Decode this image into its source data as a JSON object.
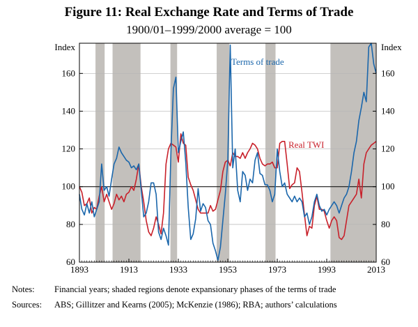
{
  "chart_data": {
    "type": "line",
    "title": "Figure 11: Real Exchange Rate and Terms of Trade",
    "subtitle": "1900/01–1999/2000 average = 100",
    "ylabel_left": "Index",
    "ylabel_right": "Index",
    "xlim": [
      1893,
      2013
    ],
    "ylim": [
      60,
      176
    ],
    "x_ticks": [
      1893,
      1913,
      1933,
      1953,
      1973,
      1993,
      2013
    ],
    "y_ticks": [
      60,
      80,
      100,
      120,
      140,
      160
    ],
    "reference_line": 100,
    "shaded_periods": [
      [
        1899.5,
        1903.2
      ],
      [
        1906.4,
        1917.7
      ],
      [
        1929.8,
        1932.5
      ],
      [
        1948.5,
        1953.6
      ],
      [
        1968.2,
        1972.3
      ],
      [
        1994.5,
        2012.8
      ]
    ],
    "series": [
      {
        "name": "Terms of trade",
        "color": "#1a66ab",
        "points": [
          [
            1893,
            96
          ],
          [
            1894,
            88
          ],
          [
            1895,
            85
          ],
          [
            1896,
            91
          ],
          [
            1897,
            86
          ],
          [
            1898,
            92
          ],
          [
            1899,
            84
          ],
          [
            1900,
            88
          ],
          [
            1901,
            92
          ],
          [
            1902,
            112
          ],
          [
            1903,
            98
          ],
          [
            1904,
            100
          ],
          [
            1905,
            95
          ],
          [
            1906,
            104
          ],
          [
            1907,
            112
          ],
          [
            1908,
            115
          ],
          [
            1909,
            121
          ],
          [
            1910,
            118
          ],
          [
            1911,
            116
          ],
          [
            1912,
            114
          ],
          [
            1913,
            113
          ],
          [
            1914,
            110
          ],
          [
            1915,
            111
          ],
          [
            1916,
            109
          ],
          [
            1917,
            112
          ],
          [
            1918,
            98
          ],
          [
            1919,
            84
          ],
          [
            1920,
            86
          ],
          [
            1921,
            92
          ],
          [
            1922,
            102
          ],
          [
            1923,
            102
          ],
          [
            1924,
            96
          ],
          [
            1925,
            76
          ],
          [
            1926,
            72
          ],
          [
            1927,
            78
          ],
          [
            1928,
            74
          ],
          [
            1929,
            69
          ],
          [
            1930,
            118
          ],
          [
            1931,
            152
          ],
          [
            1932,
            158
          ],
          [
            1933,
            118
          ],
          [
            1934,
            124
          ],
          [
            1935,
            129
          ],
          [
            1936,
            113
          ],
          [
            1937,
            89
          ],
          [
            1938,
            72
          ],
          [
            1939,
            75
          ],
          [
            1940,
            83
          ],
          [
            1941,
            99
          ],
          [
            1942,
            87
          ],
          [
            1943,
            91
          ],
          [
            1944,
            89
          ],
          [
            1945,
            82
          ],
          [
            1946,
            80
          ],
          [
            1947,
            70
          ],
          [
            1948,
            66
          ],
          [
            1949,
            61
          ],
          [
            1950,
            68
          ],
          [
            1951,
            82
          ],
          [
            1952,
            96
          ],
          [
            1953,
            114
          ],
          [
            1954,
            175
          ],
          [
            1955,
            110
          ],
          [
            1956,
            120
          ],
          [
            1957,
            98
          ],
          [
            1958,
            92
          ],
          [
            1959,
            108
          ],
          [
            1960,
            106
          ],
          [
            1961,
            98
          ],
          [
            1962,
            104
          ],
          [
            1963,
            102
          ],
          [
            1964,
            114
          ],
          [
            1965,
            118
          ],
          [
            1966,
            107
          ],
          [
            1967,
            106
          ],
          [
            1968,
            101
          ],
          [
            1969,
            101
          ],
          [
            1970,
            98
          ],
          [
            1971,
            92
          ],
          [
            1972,
            96
          ],
          [
            1973,
            120
          ],
          [
            1974,
            108
          ],
          [
            1975,
            100
          ],
          [
            1976,
            102
          ],
          [
            1977,
            96
          ],
          [
            1978,
            94
          ],
          [
            1979,
            92
          ],
          [
            1980,
            95
          ],
          [
            1981,
            92
          ],
          [
            1982,
            94
          ],
          [
            1983,
            92
          ],
          [
            1984,
            84
          ],
          [
            1985,
            86
          ],
          [
            1986,
            80
          ],
          [
            1987,
            84
          ],
          [
            1988,
            92
          ],
          [
            1989,
            96
          ],
          [
            1990,
            90
          ],
          [
            1991,
            87
          ],
          [
            1992,
            88
          ],
          [
            1993,
            85
          ],
          [
            1994,
            88
          ],
          [
            1995,
            90
          ],
          [
            1996,
            92
          ],
          [
            1997,
            90
          ],
          [
            1998,
            86
          ],
          [
            1999,
            90
          ],
          [
            2000,
            94
          ],
          [
            2001,
            96
          ],
          [
            2002,
            100
          ],
          [
            2003,
            108
          ],
          [
            2004,
            118
          ],
          [
            2005,
            124
          ],
          [
            2006,
            135
          ],
          [
            2007,
            142
          ],
          [
            2008,
            150
          ],
          [
            2009,
            145
          ],
          [
            2010,
            174
          ],
          [
            2011,
            176
          ],
          [
            2012,
            165
          ],
          [
            2013,
            160
          ]
        ]
      },
      {
        "name": "Real TWI",
        "color": "#c8202a",
        "points": [
          [
            1893,
            100
          ],
          [
            1894,
            97
          ],
          [
            1895,
            90
          ],
          [
            1896,
            91
          ],
          [
            1897,
            94
          ],
          [
            1898,
            86
          ],
          [
            1899,
            89
          ],
          [
            1900,
            88
          ],
          [
            1901,
            95
          ],
          [
            1902,
            100
          ],
          [
            1903,
            92
          ],
          [
            1904,
            96
          ],
          [
            1905,
            92
          ],
          [
            1906,
            88
          ],
          [
            1907,
            91
          ],
          [
            1908,
            96
          ],
          [
            1909,
            93
          ],
          [
            1910,
            95
          ],
          [
            1911,
            92
          ],
          [
            1912,
            96
          ],
          [
            1913,
            97
          ],
          [
            1914,
            100
          ],
          [
            1915,
            98
          ],
          [
            1916,
            104
          ],
          [
            1917,
            112
          ],
          [
            1918,
            100
          ],
          [
            1919,
            92
          ],
          [
            1920,
            82
          ],
          [
            1921,
            76
          ],
          [
            1922,
            74
          ],
          [
            1923,
            78
          ],
          [
            1924,
            84
          ],
          [
            1925,
            80
          ],
          [
            1926,
            75
          ],
          [
            1927,
            86
          ],
          [
            1928,
            112
          ],
          [
            1929,
            120
          ],
          [
            1930,
            123
          ],
          [
            1931,
            122
          ],
          [
            1932,
            121
          ],
          [
            1933,
            113
          ],
          [
            1934,
            128
          ],
          [
            1935,
            123
          ],
          [
            1936,
            122
          ],
          [
            1937,
            105
          ],
          [
            1938,
            101
          ],
          [
            1939,
            98
          ],
          [
            1940,
            93
          ],
          [
            1941,
            88
          ],
          [
            1942,
            86
          ],
          [
            1943,
            86
          ],
          [
            1944,
            86
          ],
          [
            1945,
            86
          ],
          [
            1946,
            90
          ],
          [
            1947,
            87
          ],
          [
            1948,
            88
          ],
          [
            1949,
            93
          ],
          [
            1950,
            98
          ],
          [
            1951,
            108
          ],
          [
            1952,
            113
          ],
          [
            1953,
            114
          ],
          [
            1954,
            111
          ],
          [
            1955,
            118
          ],
          [
            1956,
            116
          ],
          [
            1957,
            116
          ],
          [
            1958,
            115
          ],
          [
            1959,
            118
          ],
          [
            1960,
            115
          ],
          [
            1961,
            118
          ],
          [
            1962,
            120
          ],
          [
            1963,
            123
          ],
          [
            1964,
            122
          ],
          [
            1965,
            120
          ],
          [
            1966,
            115
          ],
          [
            1967,
            112
          ],
          [
            1968,
            111
          ],
          [
            1969,
            112
          ],
          [
            1970,
            112
          ],
          [
            1971,
            113
          ],
          [
            1972,
            110
          ],
          [
            1973,
            110
          ],
          [
            1974,
            123
          ],
          [
            1975,
            124
          ],
          [
            1976,
            124
          ],
          [
            1977,
            112
          ],
          [
            1978,
            99
          ],
          [
            1979,
            101
          ],
          [
            1980,
            102
          ],
          [
            1981,
            110
          ],
          [
            1982,
            108
          ],
          [
            1983,
            97
          ],
          [
            1984,
            85
          ],
          [
            1985,
            74
          ],
          [
            1986,
            79
          ],
          [
            1987,
            78
          ],
          [
            1988,
            90
          ],
          [
            1989,
            95
          ],
          [
            1990,
            88
          ],
          [
            1991,
            88
          ],
          [
            1992,
            87
          ],
          [
            1993,
            82
          ],
          [
            1994,
            78
          ],
          [
            1995,
            82
          ],
          [
            1996,
            84
          ],
          [
            1997,
            82
          ],
          [
            1998,
            73
          ],
          [
            1999,
            72
          ],
          [
            2000,
            74
          ],
          [
            2001,
            82
          ],
          [
            2002,
            90
          ],
          [
            2003,
            92
          ],
          [
            2004,
            94
          ],
          [
            2005,
            96
          ],
          [
            2006,
            104
          ],
          [
            2007,
            94
          ],
          [
            2008,
            112
          ],
          [
            2009,
            118
          ],
          [
            2010,
            120
          ],
          [
            2011,
            122
          ],
          [
            2012,
            123
          ],
          [
            2013,
            124
          ]
        ]
      }
    ],
    "series_labels": [
      "Terms of trade",
      "Real TWI"
    ]
  },
  "notes": {
    "notes_key": "Notes:",
    "notes_text": "Financial years; shaded regions denote expansionary phases of the terms of trade",
    "sources_key": "Sources:",
    "sources_text": "ABS; Gillitzer and Kearns (2005); McKenzie (1986); RBA; authors’ calculations"
  }
}
